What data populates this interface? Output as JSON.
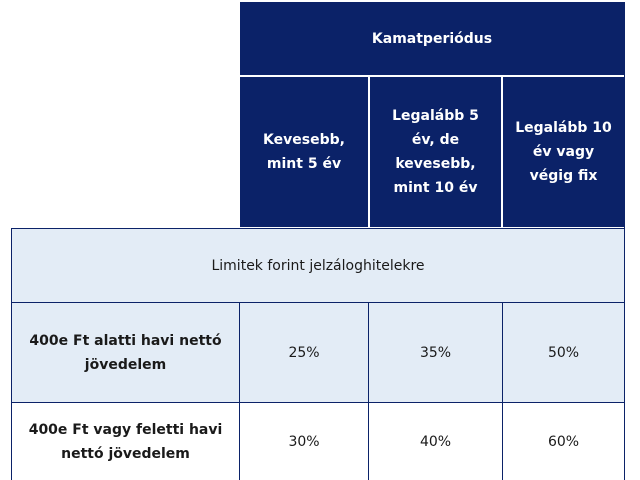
{
  "header": {
    "group_title": "Kamatperiódus",
    "columns": [
      "Kevesebb, mint 5 év",
      "Legalább 5 év, de kevesebb, mint 10 év",
      "Legalább 10 év vagy végig fix"
    ]
  },
  "section_title": "Limitek forint jelzáloghitelekre",
  "rows": [
    {
      "label": "400e Ft alatti havi nettó jövedelem",
      "values": [
        "25%",
        "35%",
        "50%"
      ]
    },
    {
      "label": "400e Ft vagy feletti havi nettó jövedelem",
      "values": [
        "30%",
        "40%",
        "60%"
      ]
    }
  ],
  "colors": {
    "header_bg": "#0b2268",
    "light_row_bg": "#e3ecf6",
    "border": "#0b2268"
  }
}
